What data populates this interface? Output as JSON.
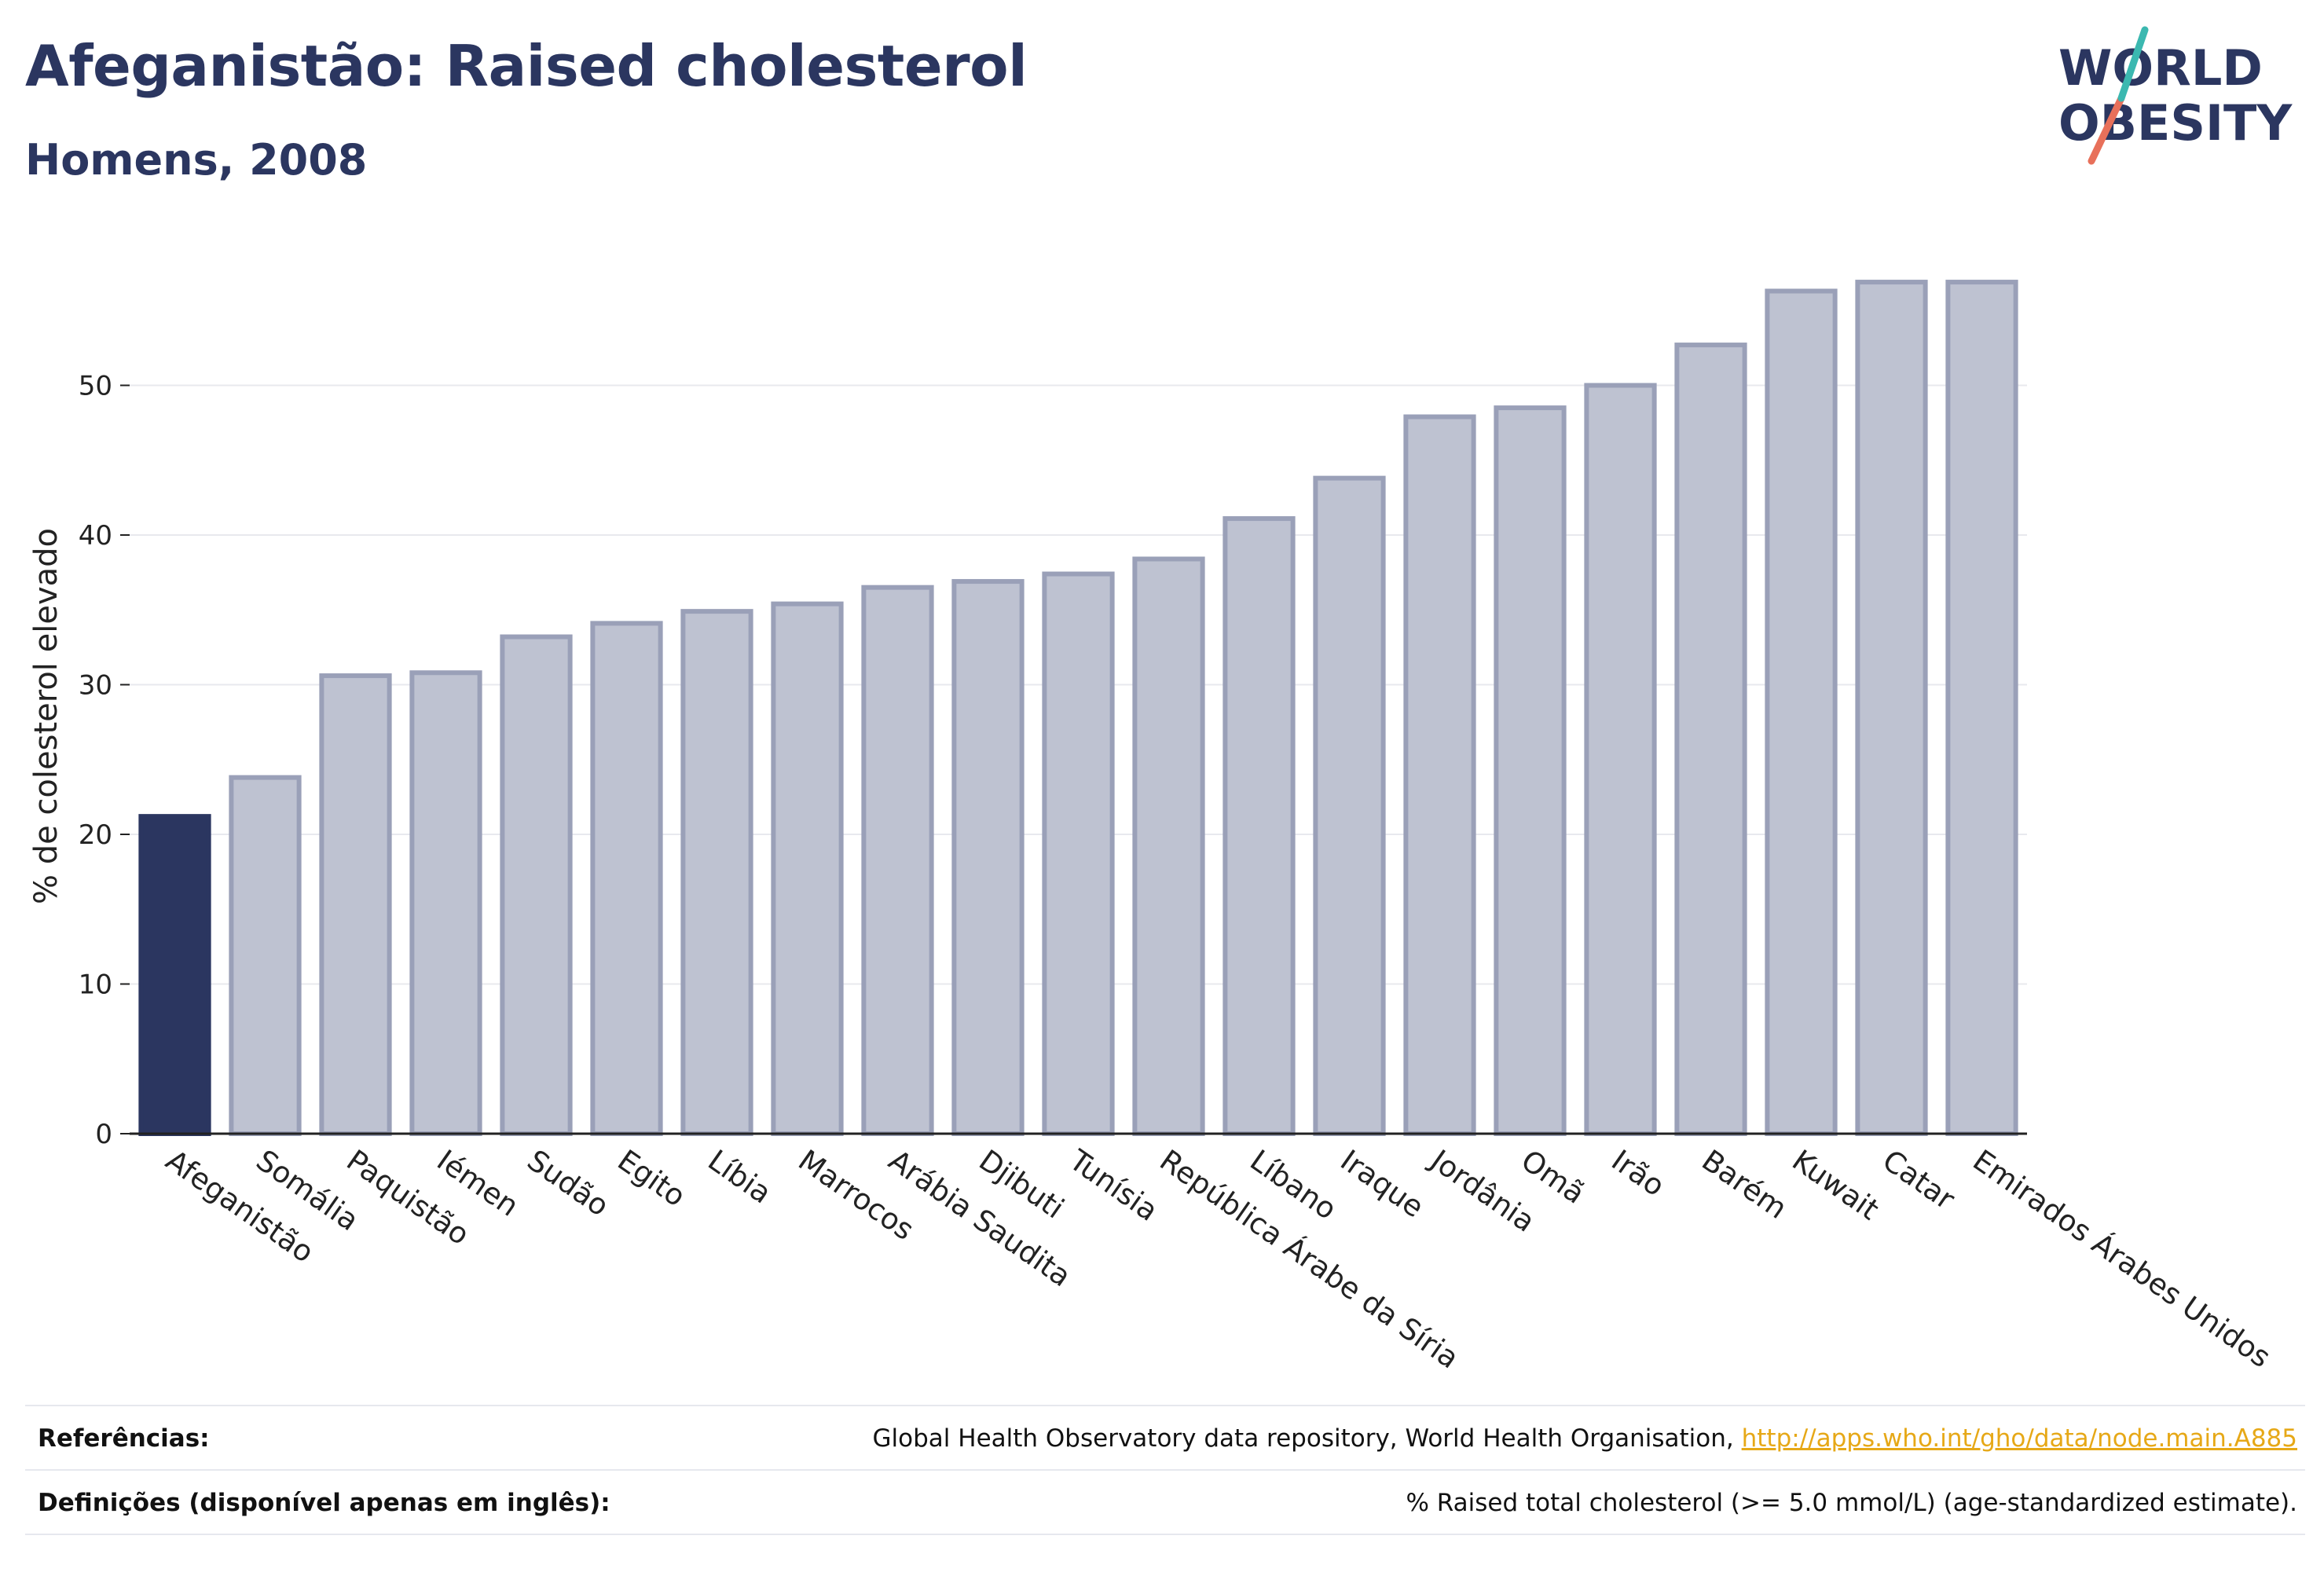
{
  "header": {
    "title": "Afeganistão: Raised cholesterol",
    "subtitle": "Homens, 2008"
  },
  "logo": {
    "line1": "WORLD",
    "line2": "OBESITY",
    "accent_teal": "#3bb8b0",
    "accent_red": "#e8705a"
  },
  "colors": {
    "highlight": "#2b3660",
    "bar_fill": "#bec2d1",
    "bar_stroke": "#9aa0b8",
    "grid": "#e8e9ee"
  },
  "chart_data": {
    "type": "bar",
    "ylabel": "% de colesterol elevado",
    "ylim": [
      0,
      60
    ],
    "yticks": [
      0,
      10,
      20,
      30,
      40,
      50
    ],
    "highlight_category": "Afeganistão",
    "categories": [
      "Afeganistão",
      "Somália",
      "Paquistão",
      "Iémen",
      "Sudão",
      "Egito",
      "Líbia",
      "Marrocos",
      "Arábia Saudita",
      "Djibuti",
      "Tunísia",
      "República Árabe da Síria",
      "Líbano",
      "Iraque",
      "Jordânia",
      "Omã",
      "Irão",
      "Barém",
      "Kuwait",
      "Catar",
      "Emirados Árabes Unidos"
    ],
    "values": [
      21.2,
      23.8,
      30.6,
      30.8,
      33.2,
      34.1,
      34.9,
      35.4,
      36.5,
      36.9,
      37.4,
      38.4,
      41.1,
      43.8,
      47.9,
      48.5,
      50.0,
      52.7,
      56.3,
      56.9,
      56.9
    ],
    "grid": true,
    "legend": "none"
  },
  "footer": {
    "references_label": "Referências:",
    "references_text": "Global Health Observatory data repository, World Health Organisation, ",
    "references_link": "http://apps.who.int/gho/data/node.main.A885",
    "definitions_label": "Definições (disponível apenas em inglês):",
    "definitions_text": "% Raised total cholesterol (>= 5.0 mmol/L) (age-standardized estimate)."
  }
}
